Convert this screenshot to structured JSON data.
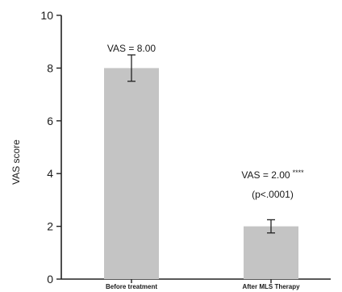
{
  "chart_data": {
    "type": "bar",
    "title": "",
    "xlabel": "",
    "ylabel": "VAS score",
    "ylim": [
      0,
      10
    ],
    "yticks": [
      0,
      2,
      4,
      6,
      8,
      10
    ],
    "categories": [
      "Before treatment",
      "After MLS Therapy"
    ],
    "values": [
      8.0,
      2.0
    ],
    "errors": [
      0.5,
      0.25
    ],
    "bar_color": "#c4c4c4",
    "grid": false,
    "annotations": [
      {
        "category": "Before treatment",
        "lines": [
          "VAS = 8.00"
        ],
        "stars": ""
      },
      {
        "category": "After MLS Therapy",
        "lines": [
          "VAS = 2.00",
          "(p<.0001)"
        ],
        "stars": "****"
      }
    ]
  }
}
